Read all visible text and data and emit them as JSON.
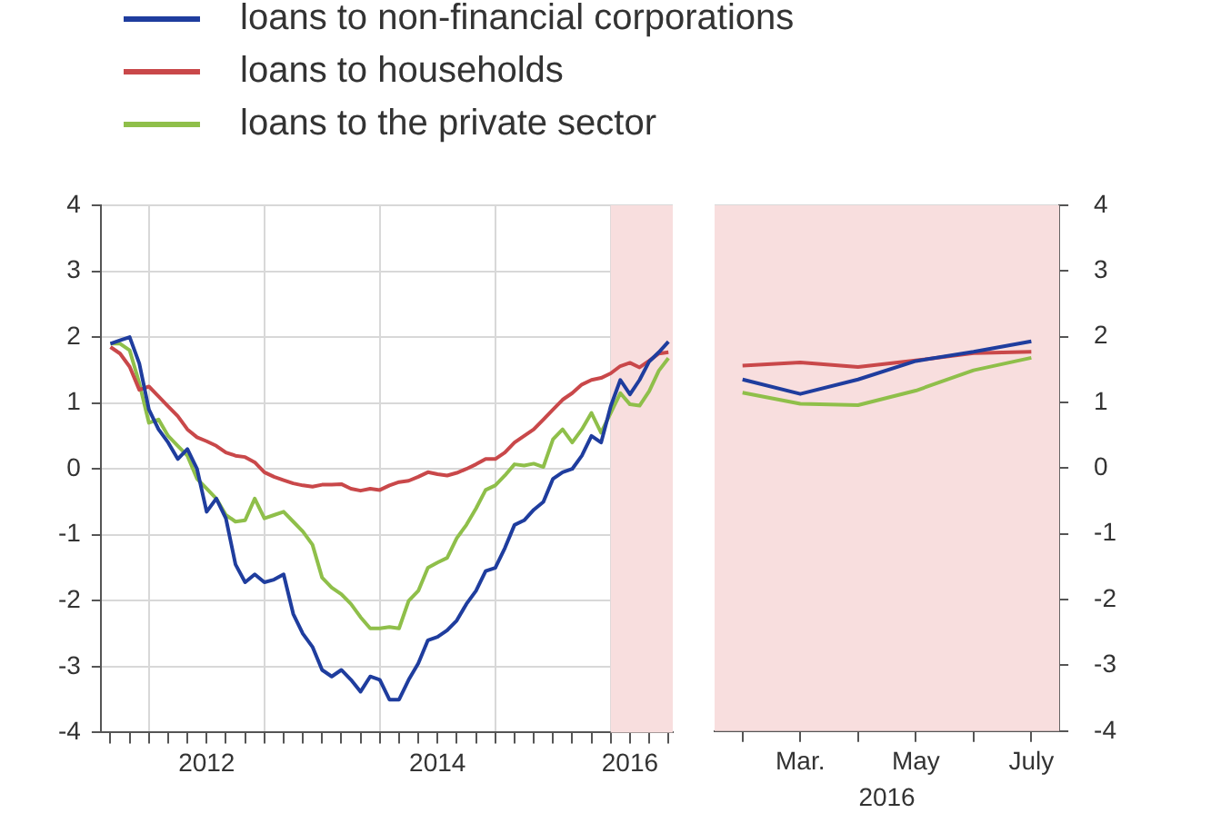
{
  "chart_data": [
    {
      "type": "line",
      "x": [
        "2011-09",
        "2011-10",
        "2011-11",
        "2011-12",
        "2012-01",
        "2012-02",
        "2012-03",
        "2012-04",
        "2012-05",
        "2012-06",
        "2012-07",
        "2012-08",
        "2012-09",
        "2012-10",
        "2012-11",
        "2012-12",
        "2013-01",
        "2013-02",
        "2013-03",
        "2013-04",
        "2013-05",
        "2013-06",
        "2013-07",
        "2013-08",
        "2013-09",
        "2013-10",
        "2013-11",
        "2013-12",
        "2014-01",
        "2014-02",
        "2014-03",
        "2014-04",
        "2014-05",
        "2014-06",
        "2014-07",
        "2014-08",
        "2014-09",
        "2014-10",
        "2014-11",
        "2014-12",
        "2015-01",
        "2015-02",
        "2015-03",
        "2015-04",
        "2015-05",
        "2015-06",
        "2015-07",
        "2015-08",
        "2015-09",
        "2015-10",
        "2015-11",
        "2015-12",
        "2016-01",
        "2016-02",
        "2016-03",
        "2016-04",
        "2016-05",
        "2016-06",
        "2016-07"
      ],
      "series": [
        {
          "name": "loans to non-financial corporations",
          "color": "#1f3d9e",
          "values": [
            1.9,
            1.95,
            2.0,
            1.6,
            0.9,
            0.6,
            0.4,
            0.15,
            0.3,
            0.0,
            -0.65,
            -0.45,
            -0.75,
            -1.45,
            -1.72,
            -1.6,
            -1.72,
            -1.68,
            -1.6,
            -2.2,
            -2.5,
            -2.7,
            -3.05,
            -3.15,
            -3.05,
            -3.2,
            -3.38,
            -3.15,
            -3.2,
            -3.5,
            -3.5,
            -3.2,
            -2.95,
            -2.6,
            -2.55,
            -2.45,
            -2.3,
            -2.05,
            -1.85,
            -1.55,
            -1.5,
            -1.2,
            -0.85,
            -0.78,
            -0.62,
            -0.5,
            -0.15,
            -0.05,
            0.0,
            0.2,
            0.5,
            0.4,
            0.95,
            1.35,
            1.13,
            1.35,
            1.63,
            1.77,
            1.93
          ]
        },
        {
          "name": "loans to households",
          "color": "#c9484a",
          "values": [
            1.85,
            1.75,
            1.55,
            1.2,
            1.25,
            1.1,
            0.95,
            0.8,
            0.6,
            0.48,
            0.42,
            0.35,
            0.25,
            0.2,
            0.18,
            0.1,
            -0.05,
            -0.12,
            -0.17,
            -0.22,
            -0.25,
            -0.27,
            -0.24,
            -0.24,
            -0.23,
            -0.3,
            -0.33,
            -0.3,
            -0.32,
            -0.25,
            -0.2,
            -0.18,
            -0.12,
            -0.05,
            -0.08,
            -0.1,
            -0.06,
            0.0,
            0.07,
            0.15,
            0.15,
            0.25,
            0.4,
            0.5,
            0.6,
            0.75,
            0.9,
            1.05,
            1.15,
            1.28,
            1.35,
            1.38,
            1.45,
            1.56,
            1.61,
            1.54,
            1.64,
            1.75,
            1.77
          ]
        },
        {
          "name": "loans to the private sector",
          "color": "#8fbf4a",
          "values": [
            1.9,
            1.9,
            1.8,
            1.3,
            0.7,
            0.75,
            0.5,
            0.35,
            0.2,
            -0.15,
            -0.3,
            -0.45,
            -0.7,
            -0.8,
            -0.78,
            -0.45,
            -0.75,
            -0.7,
            -0.65,
            -0.8,
            -0.95,
            -1.15,
            -1.65,
            -1.8,
            -1.9,
            -2.05,
            -2.25,
            -2.42,
            -2.42,
            -2.4,
            -2.42,
            -2.0,
            -1.85,
            -1.5,
            -1.42,
            -1.35,
            -1.05,
            -0.85,
            -0.6,
            -0.32,
            -0.25,
            -0.1,
            0.07,
            0.05,
            0.08,
            0.03,
            0.45,
            0.6,
            0.4,
            0.6,
            0.85,
            0.55,
            0.85,
            1.15,
            0.98,
            0.96,
            1.18,
            1.49,
            1.68
          ]
        }
      ],
      "xlim": [
        "2011-08",
        "2016-07-15"
      ],
      "xticks": [
        {
          "value": "2011-09",
          "label": null
        },
        {
          "value": "2011-11",
          "label": null
        },
        {
          "value": "2012-01",
          "label": null
        },
        {
          "value": "2012-03",
          "label": null
        },
        {
          "value": "2012-05",
          "label": null
        },
        {
          "value": "2012-07",
          "label": "2012"
        },
        {
          "value": "2012-09",
          "label": null
        },
        {
          "value": "2012-11",
          "label": null
        },
        {
          "value": "2013-01",
          "label": null
        },
        {
          "value": "2013-03",
          "label": null
        },
        {
          "value": "2013-05",
          "label": null
        },
        {
          "value": "2013-07",
          "label": null
        },
        {
          "value": "2013-09",
          "label": null
        },
        {
          "value": "2013-11",
          "label": null
        },
        {
          "value": "2014-01",
          "label": null
        },
        {
          "value": "2014-03",
          "label": null
        },
        {
          "value": "2014-05",
          "label": null
        },
        {
          "value": "2014-07",
          "label": "2014"
        },
        {
          "value": "2014-09",
          "label": null
        },
        {
          "value": "2014-11",
          "label": null
        },
        {
          "value": "2015-01",
          "label": null
        },
        {
          "value": "2015-03",
          "label": null
        },
        {
          "value": "2015-05",
          "label": null
        },
        {
          "value": "2015-07",
          "label": null
        },
        {
          "value": "2015-09",
          "label": null
        },
        {
          "value": "2015-11",
          "label": null
        },
        {
          "value": "2016-01",
          "label": null
        },
        {
          "value": "2016-03",
          "label": "2016"
        },
        {
          "value": "2016-05",
          "label": null
        },
        {
          "value": "2016-07",
          "label": null
        }
      ],
      "ylim": [
        -4,
        4
      ],
      "yticks": [
        -4,
        -3,
        -2,
        -1,
        0,
        1,
        2,
        3,
        4
      ],
      "grid": true,
      "legend": "top",
      "bands": [
        {
          "axis": "x",
          "from": "2016-01",
          "to": "2016-07-15",
          "color": "#f8dede"
        }
      ]
    },
    {
      "type": "line",
      "x": [
        "2016-02",
        "2016-03",
        "2016-04",
        "2016-05",
        "2016-06",
        "2016-07"
      ],
      "series": [
        {
          "color": "#1f3d9e",
          "values": [
            1.35,
            1.13,
            1.35,
            1.63,
            1.77,
            1.93
          ]
        },
        {
          "color": "#c9484a",
          "values": [
            1.56,
            1.61,
            1.54,
            1.64,
            1.75,
            1.77
          ]
        },
        {
          "color": "#8fbf4a",
          "values": [
            1.15,
            0.98,
            0.96,
            1.18,
            1.49,
            1.68
          ]
        }
      ],
      "xlabel": "2016",
      "xlim": [
        "2016-01-17",
        "2016-07-16"
      ],
      "xticks": [
        {
          "value": "2016-02",
          "label": null
        },
        {
          "value": "2016-03",
          "label": "Mar."
        },
        {
          "value": "2016-04",
          "label": null
        },
        {
          "value": "2016-05",
          "label": "May"
        },
        {
          "value": "2016-06",
          "label": null
        },
        {
          "value": "2016-07",
          "label": "July"
        }
      ],
      "ylim": [
        -4,
        4
      ],
      "yticks": [
        -4,
        -3,
        -2,
        -1,
        0,
        1,
        2,
        3,
        4
      ],
      "grid": true,
      "bands": [
        {
          "axis": "x",
          "from": "2016-01-17",
          "to": "2016-07-16",
          "color": "#f8dede"
        }
      ]
    }
  ]
}
